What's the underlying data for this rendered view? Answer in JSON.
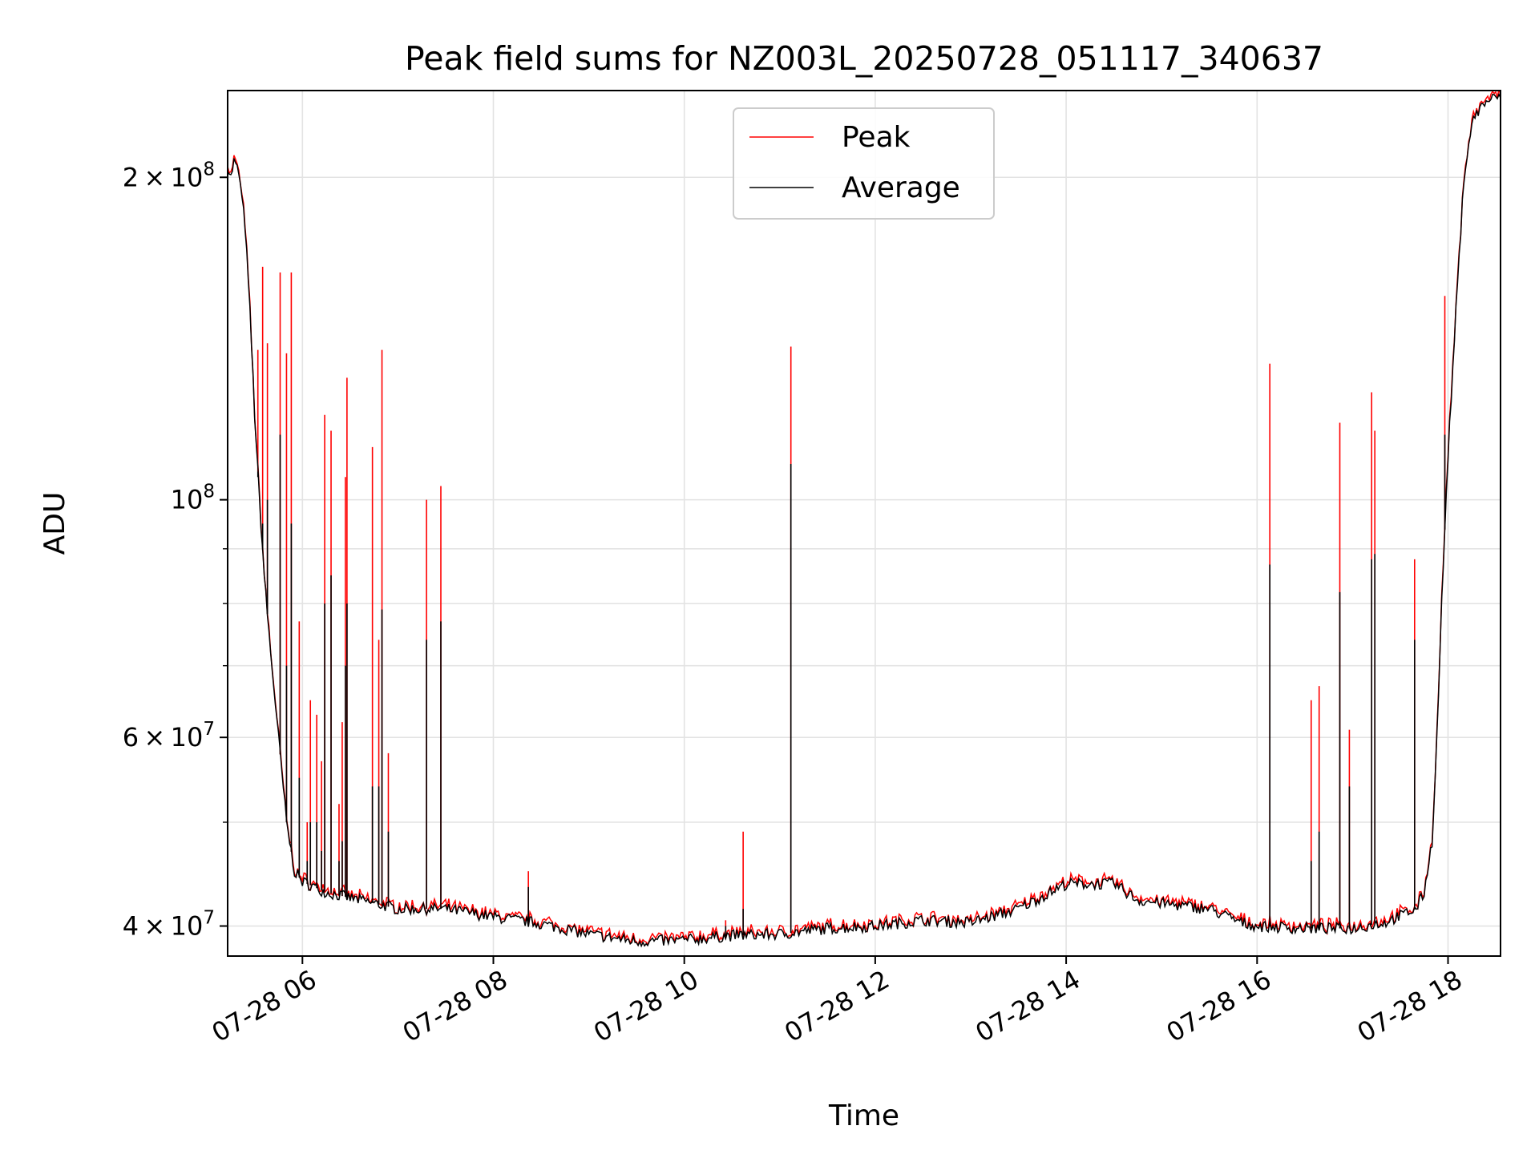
{
  "chart_data": {
    "type": "line",
    "title": "Peak field sums for NZ003L_20250728_051117_340637",
    "xlabel": "Time",
    "ylabel": "ADU",
    "yscale": "log",
    "grid": true,
    "legend_position": "upper center",
    "xlim": [
      "2025-07-28 05:13",
      "2025-07-28 18:33"
    ],
    "ylim": [
      37500000,
      241000000
    ],
    "x_ticks": [
      "07-28 06",
      "07-28 08",
      "07-28 10",
      "07-28 12",
      "07-28 14",
      "07-28 16",
      "07-28 18"
    ],
    "y_ticks": [
      {
        "value": 40000000,
        "base": "4",
        "times": "×",
        "exp_base": "10",
        "exponent": "7"
      },
      {
        "value": 60000000,
        "base": "6",
        "times": "×",
        "exp_base": "10",
        "exponent": "7"
      },
      {
        "value": 100000000,
        "base": "",
        "times": "",
        "exp_base": "10",
        "exponent": "8"
      },
      {
        "value": 200000000,
        "base": "2",
        "times": "×",
        "exp_base": "10",
        "exponent": "8"
      }
    ],
    "series": [
      {
        "name": "Peak",
        "color": "#ff0000"
      },
      {
        "name": "Average",
        "color": "#000000"
      }
    ],
    "average_baseline": [
      [
        "2025-07-28 05:13",
        205000000
      ],
      [
        "2025-07-28 05:15",
        200000000
      ],
      [
        "2025-07-28 05:17",
        207000000
      ],
      [
        "2025-07-28 05:20",
        202000000
      ],
      [
        "2025-07-28 05:24",
        180000000
      ],
      [
        "2025-07-28 05:27",
        150000000
      ],
      [
        "2025-07-28 05:30",
        120000000
      ],
      [
        "2025-07-28 05:33",
        100000000
      ],
      [
        "2025-07-28 05:36",
        85000000
      ],
      [
        "2025-07-28 05:40",
        72000000
      ],
      [
        "2025-07-28 05:45",
        60000000
      ],
      [
        "2025-07-28 05:50",
        50000000
      ],
      [
        "2025-07-28 05:55",
        45000000
      ],
      [
        "2025-07-28 06:00",
        44000000
      ],
      [
        "2025-07-28 06:15",
        43000000
      ],
      [
        "2025-07-28 06:30",
        42500000
      ],
      [
        "2025-07-28 07:00",
        41500000
      ],
      [
        "2025-07-28 07:30",
        41500000
      ],
      [
        "2025-07-28 08:00",
        40800000
      ],
      [
        "2025-07-28 08:30",
        40200000
      ],
      [
        "2025-07-28 09:00",
        39300000
      ],
      [
        "2025-07-28 09:30",
        38700000
      ],
      [
        "2025-07-28 10:00",
        38800000
      ],
      [
        "2025-07-28 10:30",
        39200000
      ],
      [
        "2025-07-28 11:00",
        39300000
      ],
      [
        "2025-07-28 11:30",
        39800000
      ],
      [
        "2025-07-28 12:00",
        40000000
      ],
      [
        "2025-07-28 12:30",
        40500000
      ],
      [
        "2025-07-28 13:00",
        40300000
      ],
      [
        "2025-07-28 13:30",
        41500000
      ],
      [
        "2025-07-28 13:50",
        43000000
      ],
      [
        "2025-07-28 14:00",
        43800000
      ],
      [
        "2025-07-28 14:30",
        43800000
      ],
      [
        "2025-07-28 14:45",
        42300000
      ],
      [
        "2025-07-28 15:00",
        42000000
      ],
      [
        "2025-07-28 15:30",
        41500000
      ],
      [
        "2025-07-28 15:50",
        40300000
      ],
      [
        "2025-07-28 16:00",
        40000000
      ],
      [
        "2025-07-28 16:30",
        39800000
      ],
      [
        "2025-07-28 17:00",
        39800000
      ],
      [
        "2025-07-28 17:20",
        40300000
      ],
      [
        "2025-07-28 17:40",
        41500000
      ],
      [
        "2025-07-28 17:45",
        43000000
      ],
      [
        "2025-07-28 17:50",
        48000000
      ],
      [
        "2025-07-28 17:53",
        60000000
      ],
      [
        "2025-07-28 17:56",
        80000000
      ],
      [
        "2025-07-28 18:00",
        110000000
      ],
      [
        "2025-07-28 18:05",
        150000000
      ],
      [
        "2025-07-28 18:10",
        200000000
      ],
      [
        "2025-07-28 18:15",
        225000000
      ],
      [
        "2025-07-28 18:20",
        232000000
      ],
      [
        "2025-07-28 18:25",
        236000000
      ],
      [
        "2025-07-28 18:33",
        238000000
      ]
    ],
    "spikes": [
      {
        "x": "2025-07-28 05:32",
        "peak": 138000000,
        "avg": 105000000
      },
      {
        "x": "2025-07-28 05:35",
        "peak": 165000000,
        "avg": 95000000
      },
      {
        "x": "2025-07-28 05:38",
        "peak": 140000000,
        "avg": 100000000
      },
      {
        "x": "2025-07-28 05:46",
        "peak": 163000000,
        "avg": 115000000
      },
      {
        "x": "2025-07-28 05:50",
        "peak": 137000000,
        "avg": 70000000
      },
      {
        "x": "2025-07-28 05:53",
        "peak": 163000000,
        "avg": 95000000
      },
      {
        "x": "2025-07-28 05:58",
        "peak": 77000000,
        "avg": 55000000
      },
      {
        "x": "2025-07-28 06:03",
        "peak": 50000000,
        "avg": 46000000
      },
      {
        "x": "2025-07-28 06:05",
        "peak": 65000000,
        "avg": 50000000
      },
      {
        "x": "2025-07-28 06:09",
        "peak": 63000000,
        "avg": 50000000
      },
      {
        "x": "2025-07-28 06:12",
        "peak": 57000000,
        "avg": 47000000
      },
      {
        "x": "2025-07-28 06:14",
        "peak": 120000000,
        "avg": 80000000
      },
      {
        "x": "2025-07-28 06:18",
        "peak": 116000000,
        "avg": 85000000
      },
      {
        "x": "2025-07-28 06:23",
        "peak": 52000000,
        "avg": 46000000
      },
      {
        "x": "2025-07-28 06:25",
        "peak": 62000000,
        "avg": 48000000
      },
      {
        "x": "2025-07-28 06:27",
        "peak": 105000000,
        "avg": 70000000
      },
      {
        "x": "2025-07-28 06:28",
        "peak": 130000000,
        "avg": 80000000
      },
      {
        "x": "2025-07-28 06:44",
        "peak": 112000000,
        "avg": 54000000
      },
      {
        "x": "2025-07-28 06:48",
        "peak": 74000000,
        "avg": 54000000
      },
      {
        "x": "2025-07-28 06:50",
        "peak": 138000000,
        "avg": 79000000
      },
      {
        "x": "2025-07-28 06:54",
        "peak": 58000000,
        "avg": 49000000
      },
      {
        "x": "2025-07-28 07:18",
        "peak": 100000000,
        "avg": 74000000
      },
      {
        "x": "2025-07-28 07:27",
        "peak": 103000000,
        "avg": 77000000
      },
      {
        "x": "2025-07-28 08:22",
        "peak": 45000000,
        "avg": 43500000
      },
      {
        "x": "2025-07-28 10:26",
        "peak": 40500000,
        "avg": 40000000
      },
      {
        "x": "2025-07-28 10:37",
        "peak": 49000000,
        "avg": 41500000
      },
      {
        "x": "2025-07-28 11:07",
        "peak": 139000000,
        "avg": 108000000
      },
      {
        "x": "2025-07-28 16:08",
        "peak": 134000000,
        "avg": 87000000
      },
      {
        "x": "2025-07-28 16:34",
        "peak": 65000000,
        "avg": 46000000
      },
      {
        "x": "2025-07-28 16:39",
        "peak": 67000000,
        "avg": 49000000
      },
      {
        "x": "2025-07-28 16:52",
        "peak": 118000000,
        "avg": 82000000
      },
      {
        "x": "2025-07-28 16:58",
        "peak": 61000000,
        "avg": 54000000
      },
      {
        "x": "2025-07-28 17:12",
        "peak": 126000000,
        "avg": 88000000
      },
      {
        "x": "2025-07-28 17:14",
        "peak": 116000000,
        "avg": 89000000
      },
      {
        "x": "2025-07-28 17:39",
        "peak": 88000000,
        "avg": 74000000
      },
      {
        "x": "2025-07-28 17:58",
        "peak": 155000000,
        "avg": 115000000
      }
    ]
  }
}
